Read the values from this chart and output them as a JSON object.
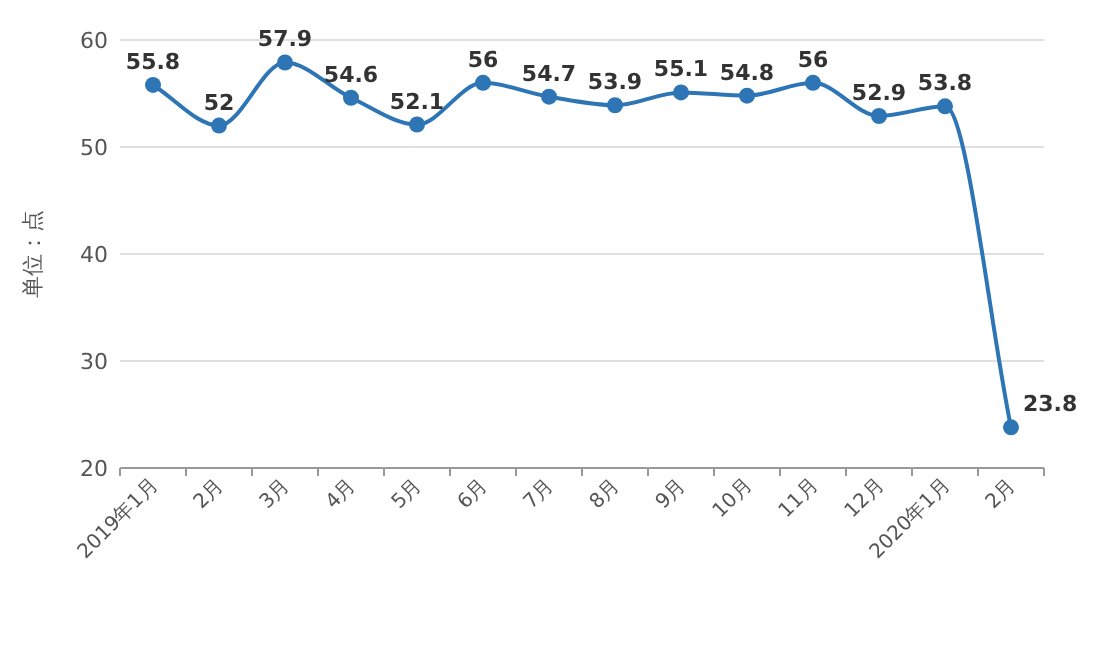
{
  "chart_data": {
    "type": "line",
    "ylabel": "单位：点",
    "categories": [
      "2019年1月",
      "2月",
      "3月",
      "4月",
      "5月",
      "6月",
      "7月",
      "8月",
      "9月",
      "10月",
      "11月",
      "12月",
      "2020年1月",
      "2月"
    ],
    "series": [
      {
        "color": "#2e75b6",
        "values": [
          55.8,
          52,
          57.9,
          54.6,
          52.1,
          56,
          54.7,
          53.9,
          55.1,
          54.8,
          56,
          52.9,
          53.8,
          23.8
        ]
      }
    ],
    "ylim": [
      20,
      60
    ],
    "yticks": [
      20,
      30,
      40,
      50,
      60
    ],
    "grid": "y",
    "marker": "circle",
    "data_labels": true
  }
}
